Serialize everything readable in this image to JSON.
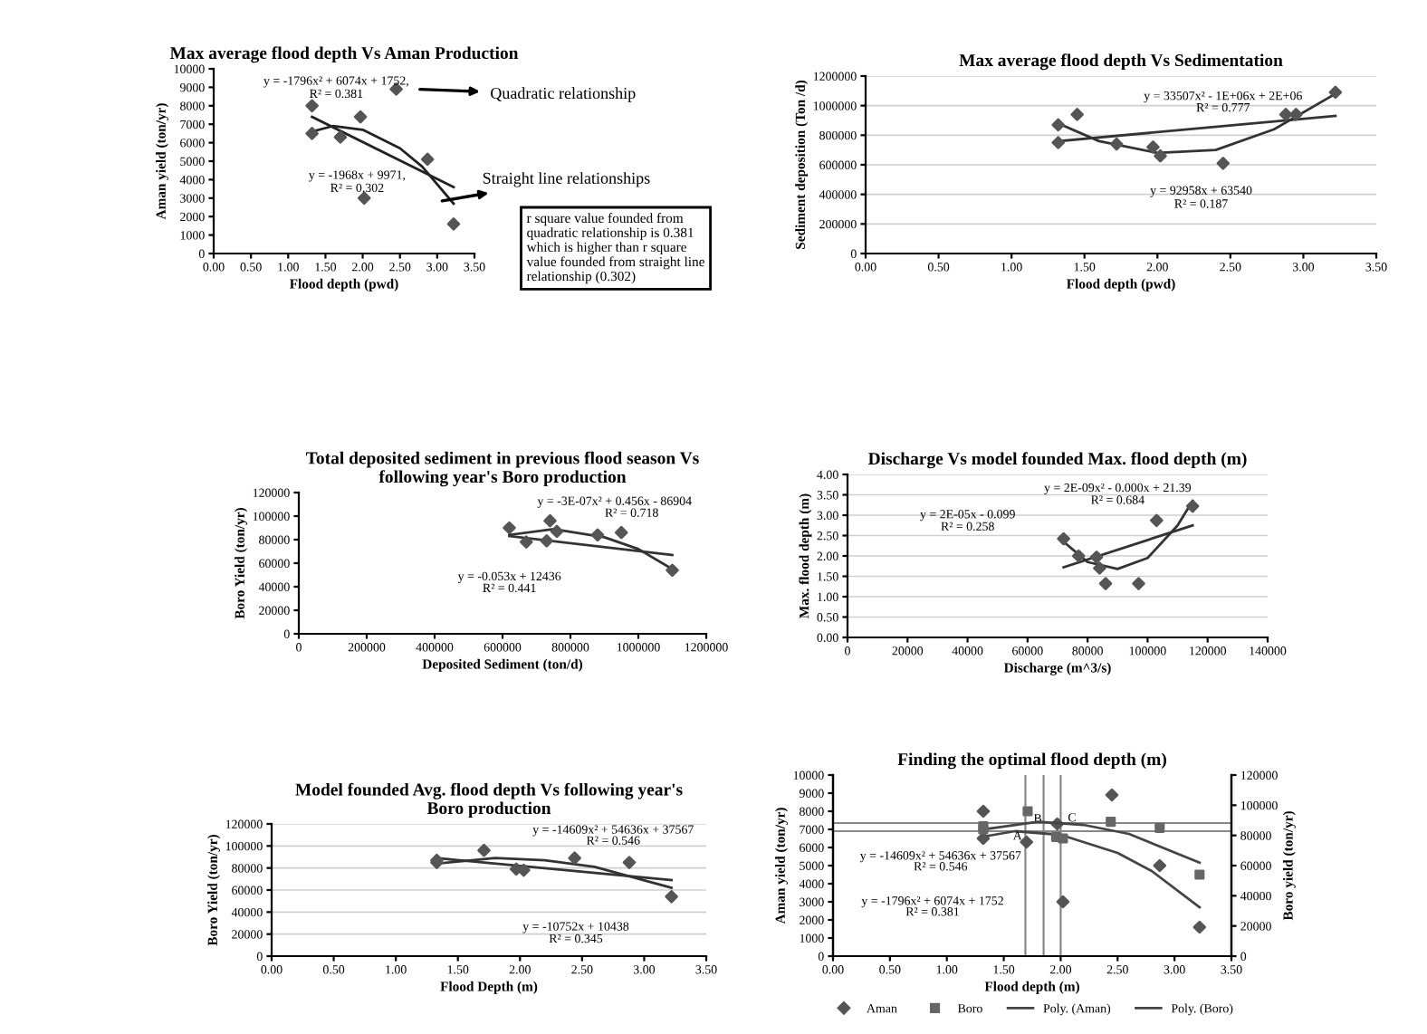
{
  "chart_data": [
    {
      "type": "scatter",
      "title": "Max average flood depth Vs Aman Production",
      "xlabel": "Flood depth (pwd)",
      "ylabel": "Aman yield (ton/yr)",
      "xlim": [
        0,
        3.5
      ],
      "xticks": [
        {
          "value": 0,
          "label": "0.00"
        },
        {
          "value": 0.5,
          "label": "0.50"
        },
        {
          "value": 1,
          "label": "1.00"
        },
        {
          "value": 1.5,
          "label": "1.50"
        },
        {
          "value": 2,
          "label": "2.00"
        },
        {
          "value": 2.5,
          "label": "2.50"
        },
        {
          "value": 3,
          "label": "3.00"
        },
        {
          "value": 3.5,
          "label": "3.50"
        }
      ],
      "ylim": [
        0,
        10000
      ],
      "yticks": [
        0,
        1000,
        2000,
        3000,
        4000,
        5000,
        6000,
        7000,
        8000,
        9000,
        10000
      ],
      "grid": false,
      "series": [
        {
          "marker": "diamond",
          "color": "#555555",
          "x": [
            1.32,
            1.32,
            1.7,
            1.97,
            2.02,
            2.45,
            2.87,
            3.22
          ],
          "values": [
            8000,
            6500,
            6300,
            7400,
            3000,
            8900,
            5100,
            1600
          ]
        },
        {
          "type": "line",
          "color": "#222222",
          "x": [
            1.32,
            1.6,
            2.0,
            2.5,
            2.8,
            3.22
          ],
          "values": [
            6600,
            6900,
            6700,
            5700,
            4700,
            2700
          ]
        },
        {
          "type": "line",
          "color": "#222222",
          "x": [
            1.32,
            3.22
          ],
          "values": [
            7400,
            3600
          ]
        }
      ],
      "annotations": [
        "y = -1796x² + 6074x + 1752,",
        "R² = 0.381",
        "y = -1968x + 9971,",
        "R² = 0.302",
        "Quadratic relationship",
        "Straight line relationships",
        "r square value founded from\nquadratic relationship is 0.381\nwhich is higher than r square\nvalue founded from straight line\nrelationship (0.302)"
      ]
    },
    {
      "type": "scatter",
      "title": "Max average flood depth Vs Sedimentation",
      "xlabel": "Flood depth (pwd)",
      "ylabel": "Sediment deposition (Ton /d)",
      "xlim": [
        0,
        3.5
      ],
      "xticks": [
        {
          "value": 0,
          "label": "0.00"
        },
        {
          "value": 0.5,
          "label": "0.50"
        },
        {
          "value": 1,
          "label": "1.00"
        },
        {
          "value": 1.5,
          "label": "1.50"
        },
        {
          "value": 2,
          "label": "2.00"
        },
        {
          "value": 2.5,
          "label": "2.50"
        },
        {
          "value": 3,
          "label": "3.00"
        },
        {
          "value": 3.5,
          "label": "3.50"
        }
      ],
      "ylim": [
        0,
        1200000
      ],
      "yticks": [
        0,
        200000,
        400000,
        600000,
        800000,
        1000000,
        1200000
      ],
      "grid": "y",
      "series": [
        {
          "marker": "diamond",
          "color": "#555555",
          "x": [
            1.32,
            1.32,
            1.45,
            1.72,
            1.97,
            2.02,
            2.45,
            2.88,
            2.95,
            3.22
          ],
          "values": [
            870000,
            750000,
            940000,
            740000,
            720000,
            660000,
            610000,
            940000,
            940000,
            1090000
          ]
        },
        {
          "type": "line",
          "color": "#333333",
          "x": [
            1.32,
            1.6,
            2.0,
            2.4,
            2.8,
            3.22
          ],
          "values": [
            880000,
            760000,
            680000,
            700000,
            840000,
            1080000
          ]
        },
        {
          "type": "line",
          "color": "#333333",
          "x": [
            1.32,
            3.22
          ],
          "values": [
            760000,
            930000
          ]
        }
      ],
      "annotations": [
        "y = 33507x² - 1E+06x + 2E+06",
        "R² = 0.777",
        "y = 92958x + 63540",
        "R² = 0.187"
      ]
    },
    {
      "type": "scatter",
      "title": "Total deposited sediment in previous flood season Vs\nfollowing year's Boro production",
      "xlabel": "Deposited Sediment (ton/d)",
      "ylabel": "Boro Yield (ton/yr)",
      "xlim": [
        0,
        1200000
      ],
      "xticks": [
        0,
        200000,
        400000,
        600000,
        800000,
        1000000,
        1200000
      ],
      "ylim": [
        0,
        120000
      ],
      "yticks": [
        0,
        20000,
        40000,
        60000,
        80000,
        100000,
        120000
      ],
      "grid": false,
      "series": [
        {
          "marker": "diamond",
          "color": "#555555",
          "x": [
            620000,
            670000,
            730000,
            740000,
            760000,
            880000,
            950000,
            1100000
          ],
          "values": [
            90000,
            78000,
            79000,
            96000,
            87000,
            84000,
            86000,
            54000
          ]
        },
        {
          "type": "line",
          "color": "#333333",
          "x": [
            620000,
            750000,
            900000,
            1000000,
            1100000
          ],
          "values": [
            84000,
            89000,
            82000,
            72000,
            55000
          ]
        },
        {
          "type": "line",
          "color": "#333333",
          "x": [
            620000,
            1100000
          ],
          "values": [
            83000,
            67000
          ]
        }
      ],
      "annotations": [
        "y = -3E-07x² + 0.456x - 86904",
        "R² = 0.718",
        "y = -0.053x + 12436",
        "R² = 0.441"
      ]
    },
    {
      "type": "scatter",
      "title": "Discharge Vs model founded Max. flood depth (m)",
      "xlabel": "Discharge (m^3/s)",
      "ylabel": "Max. flood depth (m)",
      "xlim": [
        0,
        140000
      ],
      "xticks": [
        0,
        20000,
        40000,
        60000,
        80000,
        100000,
        120000,
        140000
      ],
      "ylim": [
        0,
        4
      ],
      "yticks": [
        {
          "value": 0,
          "label": "0.00"
        },
        {
          "value": 0.5,
          "label": "0.50"
        },
        {
          "value": 1,
          "label": "1.00"
        },
        {
          "value": 1.5,
          "label": "1.50"
        },
        {
          "value": 2,
          "label": "2.00"
        },
        {
          "value": 2.5,
          "label": "2.50"
        },
        {
          "value": 3,
          "label": "3.00"
        },
        {
          "value": 3.5,
          "label": "3.50"
        },
        {
          "value": 4,
          "label": "4.00"
        }
      ],
      "grid": "y",
      "series": [
        {
          "marker": "diamond",
          "color": "#555555",
          "x": [
            72000,
            77000,
            83000,
            84000,
            86000,
            97000,
            103000,
            115000
          ],
          "values": [
            2.42,
            2.0,
            1.97,
            1.7,
            1.32,
            1.32,
            2.87,
            3.22
          ]
        },
        {
          "type": "line",
          "color": "#333333",
          "x": [
            72000,
            80000,
            90000,
            100000,
            110000,
            115000
          ],
          "values": [
            2.35,
            1.85,
            1.68,
            1.95,
            2.75,
            3.35
          ]
        },
        {
          "type": "line",
          "color": "#333333",
          "x": [
            72000,
            115000
          ],
          "values": [
            1.72,
            2.75
          ]
        }
      ],
      "annotations": [
        "y = 2E-09x² - 0.000x + 21.39",
        "R² = 0.684",
        "y = 2E-05x - 0.099",
        "R² = 0.258"
      ]
    },
    {
      "type": "scatter",
      "title": "Model founded Avg. flood depth Vs following year's\nBoro production",
      "xlabel": "Flood Depth (m)",
      "ylabel": "Boro Yield (ton/yr)",
      "xlim": [
        0,
        3.5
      ],
      "xticks": [
        {
          "value": 0,
          "label": "0.00"
        },
        {
          "value": 0.5,
          "label": "0.50"
        },
        {
          "value": 1,
          "label": "1.00"
        },
        {
          "value": 1.5,
          "label": "1.50"
        },
        {
          "value": 2,
          "label": "2.00"
        },
        {
          "value": 2.5,
          "label": "2.50"
        },
        {
          "value": 3,
          "label": "3.00"
        },
        {
          "value": 3.5,
          "label": "3.50"
        }
      ],
      "ylim": [
        0,
        120000
      ],
      "yticks": [
        0,
        20000,
        40000,
        60000,
        80000,
        100000,
        120000
      ],
      "grid": "y",
      "series": [
        {
          "marker": "diamond",
          "color": "#555555",
          "x": [
            1.33,
            1.33,
            1.71,
            1.97,
            2.03,
            2.44,
            2.88,
            3.22
          ],
          "values": [
            85000,
            87000,
            96000,
            79000,
            78000,
            89000,
            85000,
            54000
          ]
        },
        {
          "type": "line",
          "color": "#333333",
          "x": [
            1.33,
            1.8,
            2.2,
            2.6,
            3.22
          ],
          "values": [
            84000,
            89000,
            87000,
            81000,
            62000
          ]
        },
        {
          "type": "line",
          "color": "#333333",
          "x": [
            1.33,
            3.22
          ],
          "values": [
            89000,
            69000
          ]
        }
      ],
      "annotations": [
        "y = -14609x² + 54636x + 37567",
        "R² = 0.546",
        "y = -10752x + 10438",
        "R² = 0.345"
      ]
    },
    {
      "type": "scatter",
      "title": "Finding the optimal flood depth (m)",
      "xlabel": "Flood depth (m)",
      "ylabel": "Aman yield (ton/yr)",
      "y2label": "Boro yield (ton/yr)",
      "xlim": [
        0,
        3.5
      ],
      "xticks": [
        {
          "value": 0,
          "label": "0.00"
        },
        {
          "value": 0.5,
          "label": "0.50"
        },
        {
          "value": 1,
          "label": "1.00"
        },
        {
          "value": 1.5,
          "label": "1.50"
        },
        {
          "value": 2,
          "label": "2.00"
        },
        {
          "value": 2.5,
          "label": "2.50"
        },
        {
          "value": 3,
          "label": "3.00"
        },
        {
          "value": 3.5,
          "label": "3.50"
        }
      ],
      "ylim": [
        0,
        10000
      ],
      "yticks": [
        0,
        1000,
        2000,
        3000,
        4000,
        5000,
        6000,
        7000,
        8000,
        9000,
        10000
      ],
      "y2lim": [
        0,
        120000
      ],
      "y2ticks": [
        0,
        20000,
        40000,
        60000,
        80000,
        100000,
        120000
      ],
      "grid": false,
      "legend": "bottom",
      "series": [
        {
          "name": "Aman",
          "marker": "diamond",
          "color": "#555555",
          "x": [
            1.32,
            1.32,
            1.7,
            1.97,
            2.02,
            2.45,
            2.87,
            3.22
          ],
          "values": [
            8000,
            6500,
            6300,
            7300,
            3000,
            8900,
            5000,
            1600
          ]
        },
        {
          "name": "Boro",
          "marker": "square",
          "axis": "y2",
          "color": "#666666",
          "x": [
            1.32,
            1.32,
            1.71,
            1.96,
            2.02,
            2.44,
            2.87,
            3.22
          ],
          "values": [
            86000,
            84000,
            96000,
            79000,
            78000,
            89000,
            85000,
            54000
          ]
        },
        {
          "type": "line",
          "name": "Poly. (Aman)",
          "color": "#444444",
          "x": [
            1.32,
            1.6,
            2.0,
            2.5,
            2.8,
            3.22
          ],
          "values": [
            6600,
            6900,
            6700,
            5700,
            4700,
            2700
          ]
        },
        {
          "type": "line",
          "name": "Poly. (Boro)",
          "axis": "y2",
          "color": "#444444",
          "x": [
            1.33,
            1.8,
            2.2,
            2.6,
            3.22
          ],
          "values": [
            84000,
            89000,
            87000,
            81000,
            62000
          ]
        }
      ],
      "ref_lines": [
        {
          "axis": "y",
          "value": 6900,
          "color": "#888888"
        },
        {
          "axis": "y",
          "value": 7350,
          "color": "#888888"
        },
        {
          "axis": "x",
          "value": 1.69,
          "color": "#888888"
        },
        {
          "axis": "x",
          "value": 1.85,
          "color": "#888888"
        },
        {
          "axis": "x",
          "value": 2.0,
          "color": "#888888"
        }
      ],
      "annotations": [
        "A",
        "B",
        "C",
        "y = -14609x² + 54636x + 37567",
        "R² = 0.546",
        "y = -1796x² + 6074x + 1752",
        "R² = 0.381"
      ]
    }
  ]
}
